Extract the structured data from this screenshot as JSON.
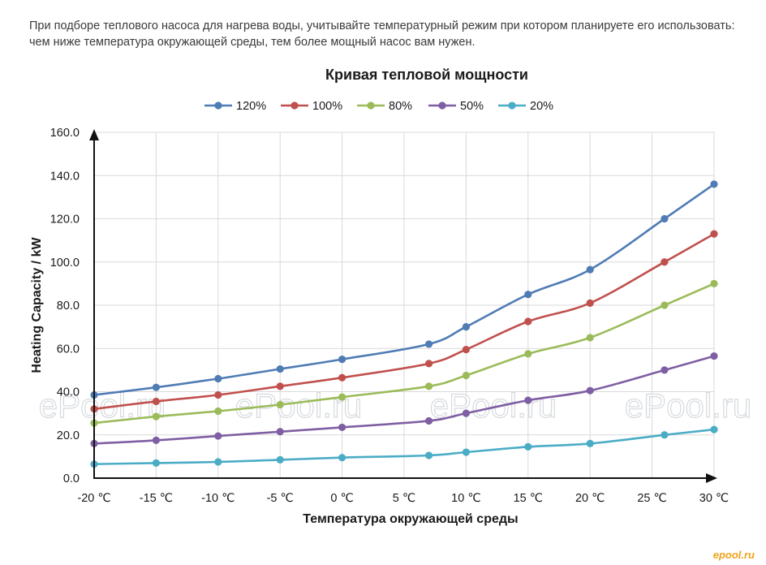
{
  "intro_text": "При подборе теплового насоса для нагрева воды, учитывайте температурный режим при котором планируете его использовать: чем ниже температура окружающей среды, тем более мощный насос вам нужен.",
  "watermark": "ePool.ru",
  "site_logo": "epool.ru",
  "colors": {
    "grid": "#d9d9d9",
    "axis": "#111111"
  },
  "chart_data": {
    "type": "line",
    "title": "Кривая тепловой мощности",
    "xlabel": "Температура окружающей среды",
    "ylabel": "Heating Capacity / kW",
    "x_tick_labels": [
      "-20 ℃",
      "-15 ℃",
      "-10 ℃",
      "-5 ℃",
      "0 ℃",
      "5 ℃",
      "10 ℃",
      "15 ℃",
      "20 ℃",
      "25 ℃",
      "30 ℃"
    ],
    "y_tick_labels": [
      "0.0",
      "20.0",
      "40.0",
      "60.0",
      "80.0",
      "100.0",
      "120.0",
      "140.0",
      "160.0"
    ],
    "xlim": [
      -20,
      30
    ],
    "ylim": [
      0,
      160
    ],
    "legend_position": "top",
    "grid": true,
    "x": [
      -20,
      -15,
      -10,
      -5,
      0,
      7,
      10,
      15,
      20,
      26,
      30
    ],
    "series": [
      {
        "name": "120%",
        "color": "#4f7cb5",
        "values": [
          38.5,
          42,
          46,
          50.5,
          55,
          62,
          70,
          85,
          96.5,
          120,
          136
        ]
      },
      {
        "name": "100%",
        "color": "#c0504d",
        "values": [
          32,
          35.5,
          38.5,
          42.5,
          46.5,
          53,
          59.5,
          72.5,
          81,
          100,
          113
        ]
      },
      {
        "name": "80%",
        "color": "#9bbb59",
        "values": [
          25.5,
          28.5,
          31,
          34,
          37.5,
          42.5,
          47.5,
          57.5,
          65,
          80,
          90
        ]
      },
      {
        "name": "50%",
        "color": "#7f5fa3",
        "values": [
          16,
          17.5,
          19.5,
          21.5,
          23.5,
          26.5,
          30,
          36,
          40.5,
          50,
          56.5
        ]
      },
      {
        "name": "20%",
        "color": "#4bacc6",
        "values": [
          6.5,
          7,
          7.5,
          8.5,
          9.5,
          10.5,
          12,
          14.5,
          16,
          20,
          22.5
        ]
      }
    ]
  }
}
